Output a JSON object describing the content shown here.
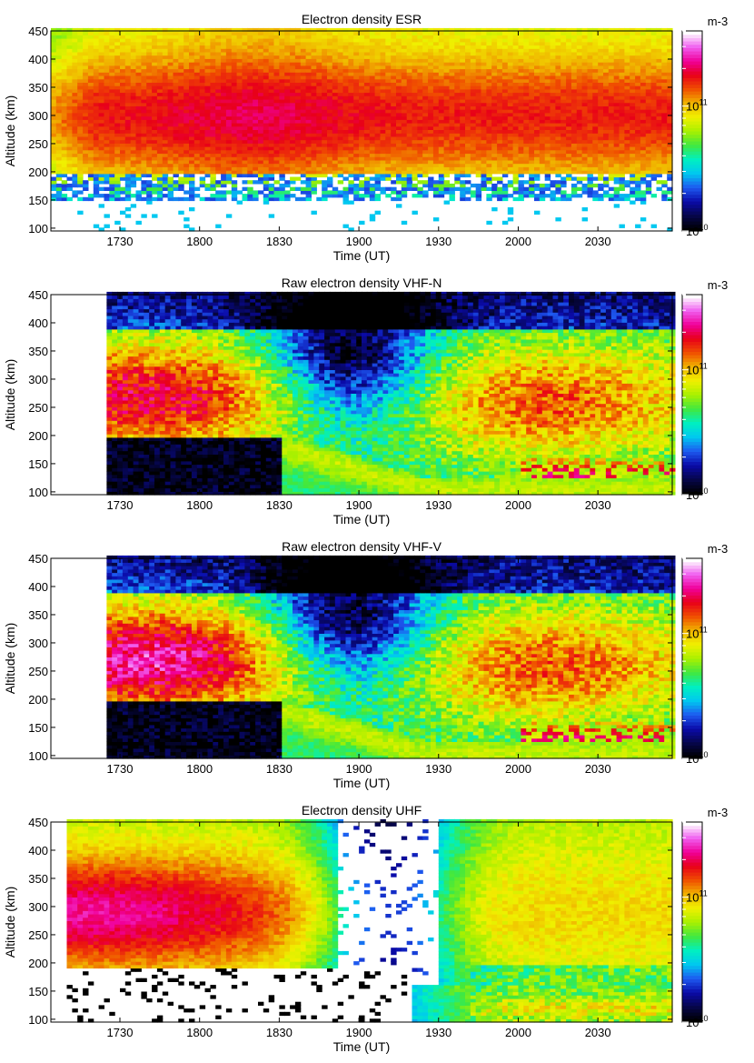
{
  "colors": {
    "colormap": [
      "#000000",
      "#06064a",
      "#0a0aa8",
      "#1e5af0",
      "#00c8f0",
      "#00f0c0",
      "#40e840",
      "#a8f000",
      "#f0f000",
      "#f0b400",
      "#f05000",
      "#e80018",
      "#f0009a",
      "#f060f0",
      "#ffffff"
    ],
    "missing": "#ffffff"
  },
  "chart_data": [
    {
      "type": "heatmap",
      "title": "Electron density ESR",
      "xlabel": "Time  (UT)",
      "ylabel": "Altitude (km)",
      "xlim": [
        "17:04",
        "20:58"
      ],
      "ylim": [
        95,
        450
      ],
      "x_ticks": [
        "1730",
        "1800",
        "1830",
        "1900",
        "1930",
        "2000",
        "2030"
      ],
      "y_ticks": [
        "100",
        "150",
        "200",
        "250",
        "300",
        "350",
        "400",
        "450"
      ],
      "colorbar": {
        "label": "m-3",
        "ticks": [
          {
            "base": "10",
            "exp": "10"
          },
          {
            "base": "10",
            "exp": "11"
          }
        ],
        "scale": "log",
        "range_m3": [
          10000000000.0,
          400000000000.0
        ]
      },
      "data_start": "17:04",
      "peak_altitude_km": 300,
      "peak_density_m3": 150000000000.0
    },
    {
      "type": "heatmap",
      "title": "Raw electron density VHF-N",
      "xlabel": "Time  (UT)",
      "ylabel": "Altitude (km)",
      "xlim": [
        "17:04",
        "20:58"
      ],
      "ylim": [
        95,
        450
      ],
      "x_ticks": [
        "1730",
        "1800",
        "1830",
        "1900",
        "1930",
        "2000",
        "2030"
      ],
      "y_ticks": [
        "100",
        "150",
        "200",
        "250",
        "300",
        "350",
        "400",
        "450"
      ],
      "colorbar": {
        "label": "m-3",
        "ticks": [
          {
            "base": "10",
            "exp": "10"
          },
          {
            "base": "10",
            "exp": "11"
          }
        ],
        "scale": "log",
        "range_m3": [
          10000000000.0,
          400000000000.0
        ]
      },
      "data_start": "17:25",
      "peak_altitude_km": 270,
      "peak_density_m3": 80000000000.0
    },
    {
      "type": "heatmap",
      "title": "Raw electron density VHF-V",
      "xlabel": "Time  (UT)",
      "ylabel": "Altitude (km)",
      "xlim": [
        "17:04",
        "20:58"
      ],
      "ylim": [
        95,
        450
      ],
      "x_ticks": [
        "1730",
        "1800",
        "1830",
        "1900",
        "1930",
        "2000",
        "2030"
      ],
      "y_ticks": [
        "100",
        "150",
        "200",
        "250",
        "300",
        "350",
        "400",
        "450"
      ],
      "colorbar": {
        "label": "m-3",
        "ticks": [
          {
            "base": "10",
            "exp": "10"
          },
          {
            "base": "10",
            "exp": "11"
          }
        ],
        "scale": "log",
        "range_m3": [
          10000000000.0,
          400000000000.0
        ]
      },
      "data_start": "17:25",
      "peak_altitude_km": 270,
      "peak_density_m3": 120000000000.0
    },
    {
      "type": "heatmap",
      "title": "Electron density UHF",
      "xlabel": "Time  (UT)",
      "ylabel": "Altitude (km)",
      "xlim": [
        "17:04",
        "20:58"
      ],
      "ylim": [
        95,
        450
      ],
      "x_ticks": [
        "1730",
        "1800",
        "1830",
        "1900",
        "1930",
        "2000",
        "2030"
      ],
      "y_ticks": [
        "100",
        "150",
        "200",
        "250",
        "300",
        "350",
        "400",
        "450"
      ],
      "colorbar": {
        "label": "m-3",
        "ticks": [
          {
            "base": "10",
            "exp": "10"
          },
          {
            "base": "10",
            "exp": "11"
          }
        ],
        "scale": "log",
        "range_m3": [
          10000000000.0,
          400000000000.0
        ]
      },
      "data_start": "17:10",
      "peak_altitude_km": 290,
      "peak_density_m3": 150000000000.0
    }
  ]
}
